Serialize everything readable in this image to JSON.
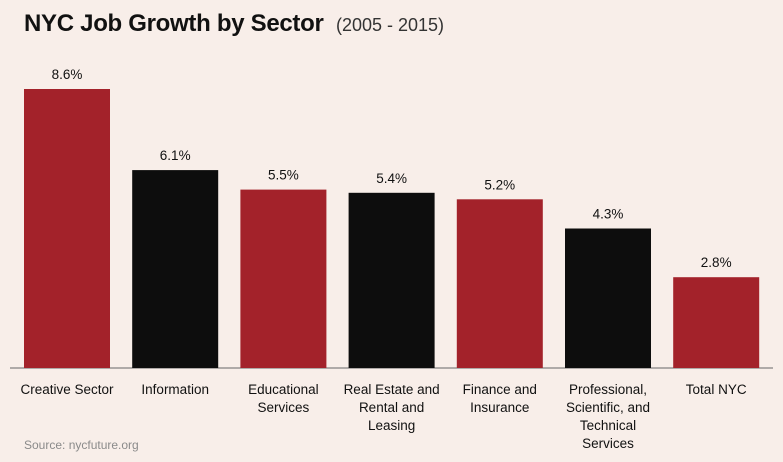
{
  "chart_data": {
    "type": "bar",
    "title": "NYC Job Growth by Sector",
    "subtitle": "(2005 - 2015)",
    "categories": [
      [
        "Creative Sector"
      ],
      [
        "Information"
      ],
      [
        "Educational",
        "Services"
      ],
      [
        "Real Estate and",
        "Rental and",
        "Leasing"
      ],
      [
        "Finance and",
        "Insurance"
      ],
      [
        "Professional,",
        "Scientific, and",
        "Technical",
        "Services"
      ],
      [
        "Total NYC"
      ]
    ],
    "values": [
      8.6,
      6.1,
      5.5,
      5.4,
      5.2,
      4.3,
      2.8
    ],
    "value_labels": [
      "8.6%",
      "6.1%",
      "5.5%",
      "5.4%",
      "5.2%",
      "4.3%",
      "2.8%"
    ],
    "colors": [
      "#a3222a",
      "#0d0d0d",
      "#a3222a",
      "#0d0d0d",
      "#a3222a",
      "#0d0d0d",
      "#a3222a"
    ],
    "ylim": [
      0,
      8.6
    ],
    "xlabel": "",
    "ylabel": "",
    "source": "Source: nycfuture.org"
  }
}
